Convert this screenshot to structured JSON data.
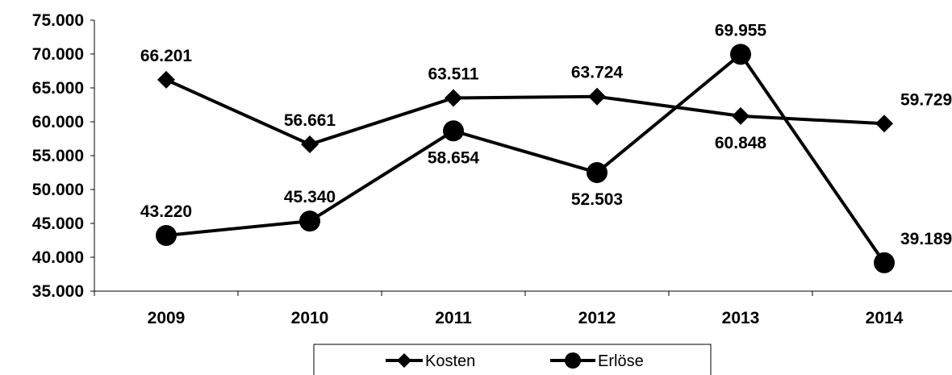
{
  "chart_data": {
    "type": "line",
    "categories": [
      "2009",
      "2010",
      "2011",
      "2012",
      "2013",
      "2014"
    ],
    "y_ticks": [
      "35.000",
      "40.000",
      "45.000",
      "50.000",
      "55.000",
      "60.000",
      "65.000",
      "70.000",
      "75.000"
    ],
    "ylim": [
      35000,
      75000
    ],
    "grid": false,
    "legend_position": "bottom",
    "series": [
      {
        "name": "Kosten",
        "marker": "diamond",
        "color": "#000000",
        "values": [
          66201,
          56661,
          63511,
          63724,
          60848,
          59729
        ],
        "labels": [
          "66.201",
          "56.661",
          "63.511",
          "63.724",
          "60.848",
          "59.729"
        ]
      },
      {
        "name": "Erlöse",
        "marker": "circle",
        "color": "#000000",
        "values": [
          43220,
          45340,
          58654,
          52503,
          69955,
          39189
        ],
        "labels": [
          "43.220",
          "45.340",
          "58.654",
          "52.503",
          "69.955",
          "39.189"
        ]
      }
    ]
  }
}
